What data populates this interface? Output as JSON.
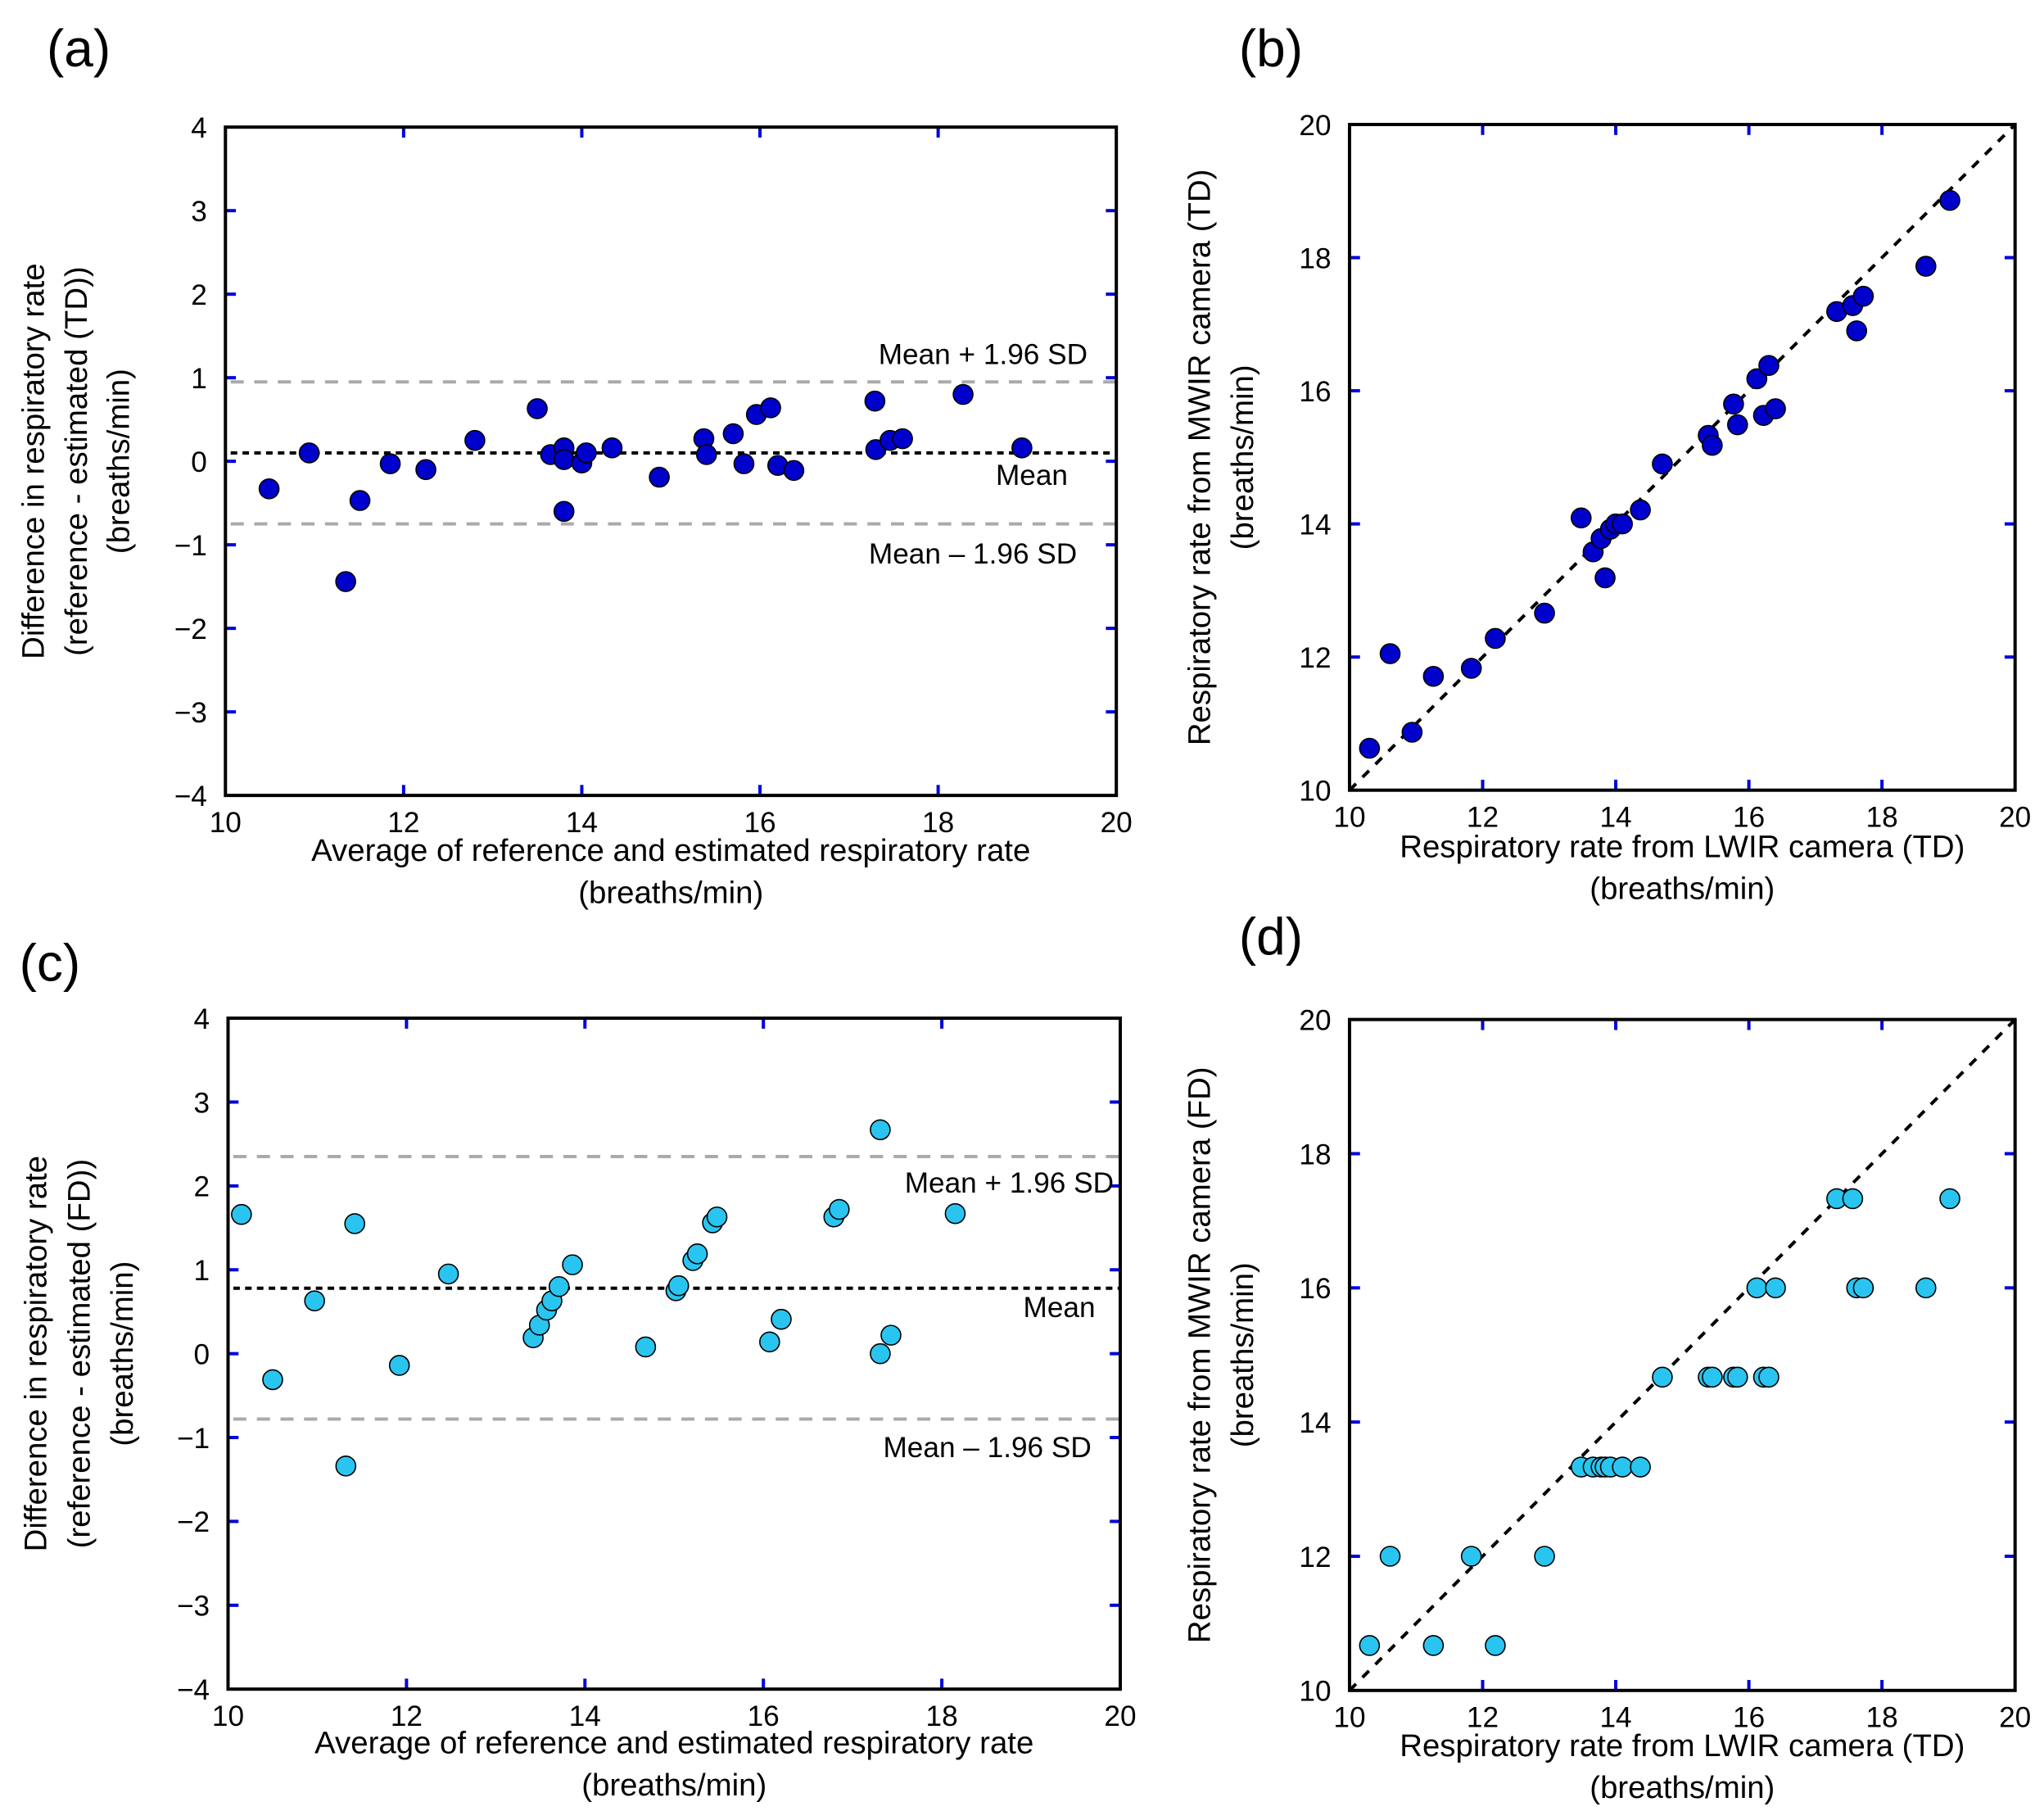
{
  "chart_data": [
    {
      "id": "a",
      "panel_label": "(a)",
      "type": "scatter",
      "kind": "bland-altman",
      "xlabel": [
        "Average of reference and estimated respiratory rate",
        "(breaths/min)"
      ],
      "ylabel": [
        "Difference in respiratory rate",
        "(reference - estimated (TD))",
        "(breaths/min)"
      ],
      "xlim": [
        10,
        20
      ],
      "ylim": [
        -4,
        4
      ],
      "xticks": [
        10,
        12,
        14,
        16,
        18,
        20
      ],
      "yticks": [
        -4,
        -3,
        -2,
        -1,
        0,
        1,
        2,
        3,
        4
      ],
      "point_color": "#0000cc",
      "x": [
        10.49,
        10.94,
        11.35,
        11.51,
        11.85,
        12.25,
        12.8,
        13.5,
        13.65,
        13.8,
        13.8,
        13.8,
        14.0,
        14.05,
        14.34,
        14.87,
        15.37,
        15.4,
        15.7,
        15.82,
        15.96,
        16.12,
        16.2,
        16.38,
        17.29,
        17.3,
        17.46,
        17.6,
        18.28,
        18.94
      ],
      "y": [
        -0.33,
        0.1,
        -1.44,
        -0.47,
        -0.03,
        -0.1,
        0.25,
        0.63,
        0.08,
        0.16,
        0.02,
        -0.6,
        -0.02,
        0.1,
        0.16,
        -0.19,
        0.27,
        0.08,
        0.33,
        -0.03,
        0.56,
        0.64,
        -0.05,
        -0.11,
        0.72,
        0.14,
        0.25,
        0.27,
        0.8,
        0.16
      ],
      "mean": 0.1,
      "upper_loa": 0.95,
      "lower_loa": -0.75,
      "annotations": {
        "upper": "Mean + 1.96 SD",
        "mean": "Mean",
        "lower": "Mean – 1.96 SD"
      }
    },
    {
      "id": "b",
      "panel_label": "(b)",
      "type": "scatter",
      "kind": "identity",
      "xlabel": [
        "Respiratory rate from LWIR camera (TD)",
        "(breaths/min)"
      ],
      "ylabel": [
        "Respiratory rate from MWIR camera (TD)",
        "(breaths/min)"
      ],
      "xlim": [
        10,
        20
      ],
      "ylim": [
        10,
        20
      ],
      "xticks": [
        10,
        12,
        14,
        16,
        18,
        20
      ],
      "yticks": [
        10,
        12,
        14,
        16,
        18,
        20
      ],
      "point_color": "#0000cc",
      "x": [
        10.3,
        10.61,
        10.94,
        11.26,
        11.83,
        12.19,
        12.93,
        13.48,
        13.66,
        13.84,
        13.78,
        13.92,
        14.0,
        14.1,
        14.37,
        14.7,
        15.39,
        15.45,
        15.77,
        15.83,
        16.12,
        16.3,
        16.22,
        16.4,
        17.32,
        17.56,
        17.72,
        17.62,
        18.66,
        19.02
      ],
      "y": [
        10.63,
        12.05,
        10.87,
        11.71,
        11.83,
        12.28,
        12.66,
        14.09,
        13.58,
        13.19,
        13.78,
        13.92,
        14.0,
        14.0,
        14.21,
        14.9,
        15.33,
        15.18,
        15.8,
        15.49,
        16.18,
        16.38,
        15.63,
        15.73,
        17.19,
        17.28,
        17.42,
        16.9,
        17.87,
        18.86
      ]
    },
    {
      "id": "c",
      "panel_label": "(c)",
      "type": "scatter",
      "kind": "bland-altman",
      "xlabel": [
        "Average of reference and estimated respiratory rate",
        "(breaths/min)"
      ],
      "ylabel": [
        "Difference in respiratory rate",
        "(reference - estimated (FD))",
        "(breaths/min)"
      ],
      "xlim": [
        10,
        20
      ],
      "ylim": [
        -4,
        4
      ],
      "xticks": [
        10,
        12,
        14,
        16,
        18,
        20
      ],
      "yticks": [
        -4,
        -3,
        -2,
        -1,
        0,
        1,
        2,
        3,
        4
      ],
      "point_color": "#29c5f0",
      "x": [
        10.15,
        10.5,
        10.97,
        11.32,
        11.42,
        11.92,
        12.47,
        13.42,
        13.49,
        13.57,
        13.63,
        13.71,
        13.86,
        14.68,
        15.02,
        15.05,
        15.21,
        15.26,
        15.43,
        15.48,
        16.07,
        16.2,
        16.79,
        16.85,
        17.31,
        17.31,
        17.43,
        18.15
      ],
      "y": [
        1.66,
        -0.31,
        0.63,
        -1.34,
        1.55,
        -0.14,
        0.95,
        0.19,
        0.34,
        0.52,
        0.63,
        0.8,
        1.06,
        0.08,
        0.75,
        0.81,
        1.11,
        1.19,
        1.56,
        1.63,
        0.14,
        0.41,
        1.63,
        1.72,
        2.67,
        0.0,
        0.22,
        1.67
      ],
      "mean": 0.78,
      "upper_loa": 2.35,
      "lower_loa": -0.78,
      "annotations": {
        "upper": "Mean + 1.96 SD",
        "mean": "Mean",
        "lower": "Mean – 1.96 SD"
      }
    },
    {
      "id": "d",
      "panel_label": "(d)",
      "type": "scatter",
      "kind": "identity",
      "xlabel": [
        "Respiratory rate from LWIR camera (TD)",
        "(breaths/min)"
      ],
      "ylabel": [
        "Respiratory rate from MWIR camera (FD)",
        "(breaths/min)"
      ],
      "xlim": [
        10,
        20
      ],
      "ylim": [
        10,
        20
      ],
      "xticks": [
        10,
        12,
        14,
        16,
        18,
        20
      ],
      "yticks": [
        10,
        12,
        14,
        16,
        18,
        20
      ],
      "point_color": "#29c5f0",
      "x": [
        10.3,
        10.61,
        11.26,
        11.83,
        12.19,
        12.93,
        13.48,
        13.66,
        13.78,
        13.84,
        13.92,
        14.1,
        14.37,
        14.7,
        15.39,
        15.45,
        15.77,
        15.83,
        16.22,
        16.3,
        16.12,
        16.4,
        17.32,
        17.56,
        17.62,
        17.72,
        18.66,
        19.02
      ],
      "y": [
        10.67,
        12,
        10.67,
        12,
        10.67,
        12,
        13.33,
        13.33,
        13.33,
        13.33,
        13.33,
        13.33,
        13.33,
        14.67,
        14.67,
        14.67,
        14.67,
        14.67,
        14.67,
        14.67,
        16,
        16,
        17.33,
        17.33,
        16,
        16,
        16,
        17.33
      ]
    }
  ]
}
